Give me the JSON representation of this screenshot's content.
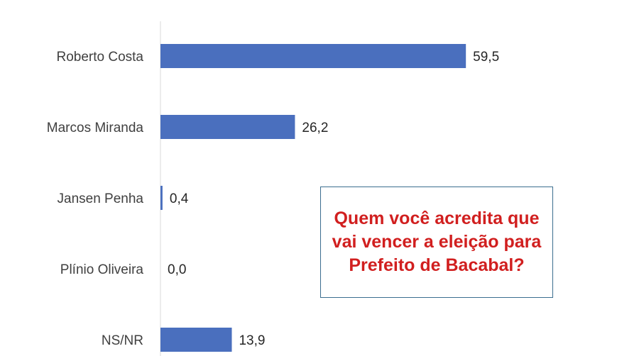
{
  "chart_data": {
    "type": "bar",
    "orientation": "horizontal",
    "categories": [
      "Roberto Costa",
      "Marcos Miranda",
      "Jansen Penha",
      "Plínio Oliveira",
      "NS/NR"
    ],
    "values": [
      59.5,
      26.2,
      0.4,
      0.0,
      13.9
    ],
    "value_labels": [
      "59,5",
      "26,2",
      "0,4",
      "0,0",
      "13,9"
    ],
    "title": "",
    "xlabel": "",
    "ylabel": "",
    "xlim": [
      0,
      100
    ],
    "grid": false,
    "legend": "none",
    "bar_color": "#4a6fbe"
  },
  "annotation": {
    "question": "Quem você acredita que vai vencer a eleição para Prefeito de Bacabal?",
    "text_color": "#d11f1f",
    "border_color": "#3b6e8f"
  }
}
